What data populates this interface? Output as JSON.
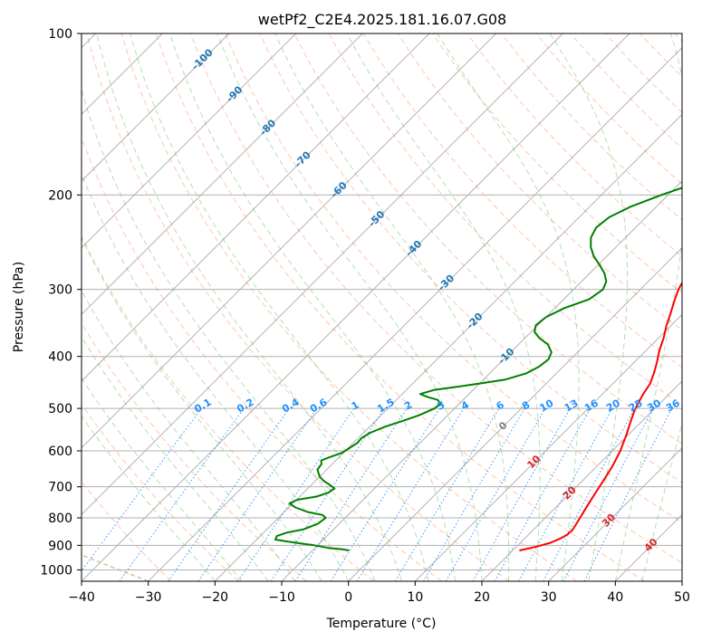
{
  "chart_data": {
    "type": "line",
    "title": "wetPf2_C2E4.2025.181.16.07.G08",
    "xlabel": "Temperature (°C)",
    "ylabel": "Pressure (hPa)",
    "xlim": [
      -40,
      50
    ],
    "ylim": [
      1050,
      100
    ],
    "y_scale": "log",
    "grid": true,
    "x_ticks": [
      "−40",
      "−30",
      "−20",
      "−10",
      "0",
      "10",
      "20",
      "30",
      "40",
      "50"
    ],
    "y_ticks": [
      "100",
      "200",
      "300",
      "400",
      "500",
      "600",
      "700",
      "800",
      "900",
      "1000"
    ],
    "series": [
      {
        "role": "temperature",
        "color": "#ff0000",
        "points": [
          [
            21.0,
            920
          ],
          [
            23.0,
            905
          ],
          [
            24.5,
            890
          ],
          [
            25.3,
            875
          ],
          [
            25.8,
            860
          ],
          [
            25.9,
            845
          ],
          [
            25.7,
            830
          ],
          [
            25.2,
            800
          ],
          [
            24.5,
            760
          ],
          [
            23.8,
            720
          ],
          [
            23.1,
            680
          ],
          [
            22.3,
            640
          ],
          [
            21.2,
            600
          ],
          [
            19.7,
            560
          ],
          [
            18.4,
            530
          ],
          [
            17.3,
            505
          ],
          [
            16.6,
            485
          ],
          [
            16.1,
            470
          ],
          [
            15.6,
            450
          ],
          [
            14.6,
            430
          ],
          [
            13.4,
            410
          ],
          [
            12.0,
            390
          ],
          [
            10.8,
            370
          ],
          [
            9.3,
            350
          ],
          [
            8.3,
            335
          ],
          [
            6.8,
            315
          ],
          [
            5.7,
            300
          ],
          [
            4.9,
            285
          ],
          [
            4.8,
            270
          ],
          [
            5.2,
            255
          ],
          [
            5.4,
            245
          ],
          [
            5.1,
            235
          ],
          [
            4.4,
            225
          ],
          [
            3.4,
            212
          ],
          [
            2.7,
            200
          ],
          [
            2.1,
            190
          ],
          [
            1.7,
            180
          ],
          [
            1.4,
            170
          ],
          [
            1.1,
            160
          ],
          [
            0.9,
            150
          ],
          [
            1.0,
            143
          ],
          [
            2.3,
            138
          ],
          [
            3.9,
            133
          ],
          [
            5.3,
            128
          ],
          [
            6.1,
            124
          ],
          [
            6.9,
            119
          ],
          [
            7.3,
            114
          ],
          [
            7.6,
            110
          ],
          [
            8.1,
            106
          ],
          [
            8.6,
            102
          ],
          [
            9.0,
            100
          ]
        ]
      },
      {
        "role": "dewpoint",
        "color": "#008000",
        "points": [
          [
            -4.5,
            920
          ],
          [
            -5.8,
            915
          ],
          [
            -8.0,
            910
          ],
          [
            -10.5,
            900
          ],
          [
            -12.8,
            893
          ],
          [
            -15.2,
            885
          ],
          [
            -17.2,
            878
          ],
          [
            -17.5,
            865
          ],
          [
            -16.5,
            852
          ],
          [
            -14.5,
            840
          ],
          [
            -13.2,
            820
          ],
          [
            -12.9,
            800
          ],
          [
            -13.8,
            790
          ],
          [
            -16.5,
            780
          ],
          [
            -19.0,
            765
          ],
          [
            -20.5,
            752
          ],
          [
            -19.9,
            740
          ],
          [
            -17.5,
            730
          ],
          [
            -16.3,
            718
          ],
          [
            -16.0,
            705
          ],
          [
            -17.4,
            693
          ],
          [
            -18.8,
            682
          ],
          [
            -20.0,
            670
          ],
          [
            -21.4,
            650
          ],
          [
            -21.6,
            635
          ],
          [
            -22.2,
            625
          ],
          [
            -21.3,
            615
          ],
          [
            -20.2,
            605
          ],
          [
            -19.9,
            595
          ],
          [
            -19.4,
            580
          ],
          [
            -19.5,
            568
          ],
          [
            -19.0,
            555
          ],
          [
            -17.6,
            540
          ],
          [
            -15.8,
            527
          ],
          [
            -14.3,
            515
          ],
          [
            -13.0,
            500
          ],
          [
            -12.8,
            490
          ],
          [
            -13.8,
            482
          ],
          [
            -15.8,
            476
          ],
          [
            -17.3,
            470
          ],
          [
            -15.9,
            462
          ],
          [
            -13.0,
            456
          ],
          [
            -9.8,
            449
          ],
          [
            -6.8,
            442
          ],
          [
            -4.5,
            430
          ],
          [
            -3.6,
            418
          ],
          [
            -3.3,
            405
          ],
          [
            -3.9,
            393
          ],
          [
            -5.6,
            380
          ],
          [
            -7.8,
            370
          ],
          [
            -9.5,
            360
          ],
          [
            -10.3,
            350
          ],
          [
            -10.0,
            338
          ],
          [
            -8.6,
            325
          ],
          [
            -6.2,
            313
          ],
          [
            -5.6,
            300
          ],
          [
            -6.3,
            290
          ],
          [
            -7.8,
            280
          ],
          [
            -9.8,
            270
          ],
          [
            -12.0,
            260
          ],
          [
            -13.8,
            250
          ],
          [
            -15.2,
            240
          ],
          [
            -15.9,
            230
          ],
          [
            -15.5,
            220
          ],
          [
            -13.8,
            210
          ],
          [
            -11.0,
            200
          ],
          [
            -7.6,
            190
          ],
          [
            -6.0,
            180
          ],
          [
            -5.3,
            170
          ],
          [
            -4.6,
            160
          ],
          [
            -4.0,
            150
          ],
          [
            -3.9,
            140
          ],
          [
            -3.6,
            130
          ],
          [
            -3.2,
            122
          ],
          [
            -2.5,
            115
          ],
          [
            -1.0,
            108
          ],
          [
            0.6,
            104
          ],
          [
            2.2,
            100
          ]
        ]
      }
    ],
    "isotherm_labels": [
      "-100",
      "-90",
      "-80",
      "-70",
      "-60",
      "-50",
      "-40",
      "-30",
      "-20",
      "-10"
    ],
    "mixing_ratio_labels": [
      "0.1",
      "0.2",
      "0.4",
      "0.6",
      "1",
      "1.5",
      "2",
      "3",
      "4",
      "6",
      "8",
      "10",
      "13",
      "16",
      "20",
      "25",
      "30",
      "36"
    ],
    "moist_adiabat_labels": [
      "0",
      "10",
      "20",
      "30",
      "40"
    ],
    "colors": {
      "isotherm_label": "#1f77b4",
      "mixing_ratio": "#1e90ff",
      "moist_label": "#d62728",
      "dry_adiabat": "#ffa07a",
      "moist_adiabat": "#2ca02c",
      "saturation": "#d2b48c",
      "skewed_isotherm": "#808080"
    }
  }
}
